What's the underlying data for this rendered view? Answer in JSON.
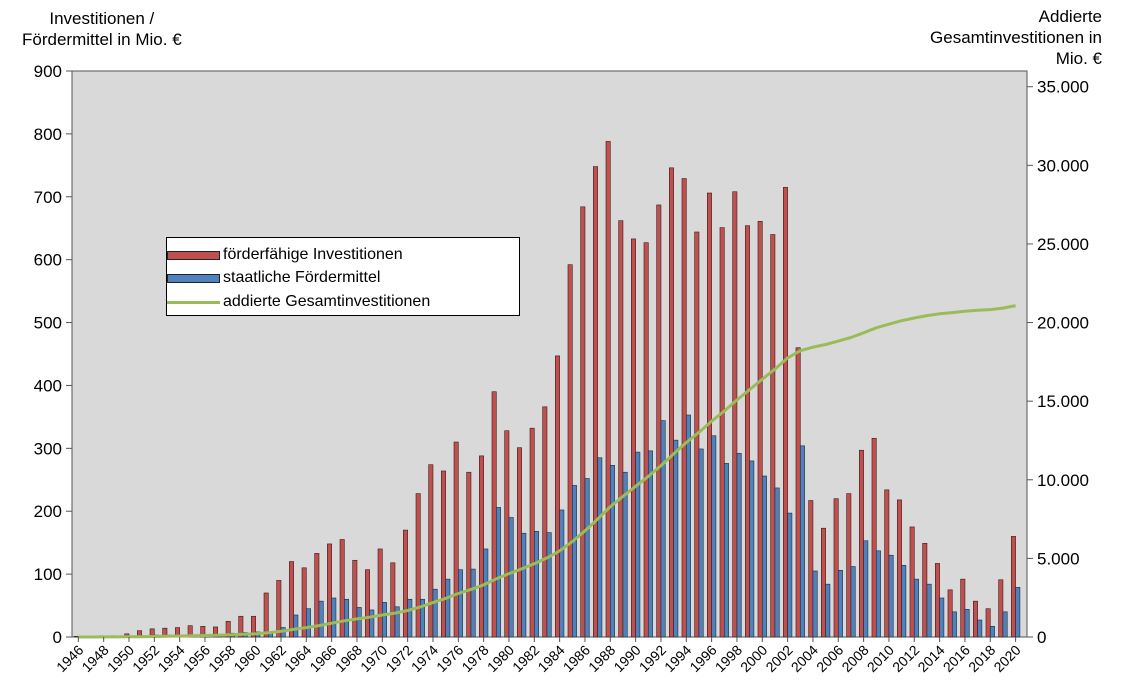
{
  "chart_data": {
    "type": "bar",
    "left_axis_title": [
      "Investitionen  /",
      "Fördermittel  in Mio. €"
    ],
    "right_axis_title": [
      "Addierte",
      "Gesamtinvestitionen  in",
      "Mio. €"
    ],
    "ylim_left": [
      0,
      900
    ],
    "yticks_left": [
      0,
      100,
      200,
      300,
      400,
      500,
      600,
      700,
      800,
      900
    ],
    "ylim_right": [
      0,
      36000
    ],
    "yticks_right": [
      "0",
      "5.000",
      "10.000",
      "15.000",
      "20.000",
      "25.000",
      "30.000",
      "35.000"
    ],
    "ytick_values_right": [
      0,
      5000,
      10000,
      15000,
      20000,
      25000,
      30000,
      35000
    ],
    "x_years": [
      1946,
      1947,
      1948,
      1949,
      1950,
      1951,
      1952,
      1953,
      1954,
      1955,
      1956,
      1957,
      1958,
      1959,
      1960,
      1961,
      1962,
      1963,
      1964,
      1965,
      1966,
      1967,
      1968,
      1969,
      1970,
      1971,
      1972,
      1973,
      1974,
      1975,
      1976,
      1977,
      1978,
      1979,
      1980,
      1981,
      1982,
      1983,
      1984,
      1985,
      1986,
      1987,
      1988,
      1989,
      1990,
      1991,
      1992,
      1993,
      1994,
      1995,
      1996,
      1997,
      1998,
      1999,
      2000,
      2001,
      2002,
      2003,
      2004,
      2005,
      2006,
      2007,
      2008,
      2009,
      2010,
      2011,
      2012,
      2013,
      2014,
      2015,
      2016,
      2017,
      2018,
      2019,
      2020
    ],
    "x_tick_labels": [
      "1946",
      "1948",
      "1950",
      "1952",
      "1954",
      "1956",
      "1958",
      "1960",
      "1962",
      "1964",
      "1966",
      "1968",
      "1970",
      "1972",
      "1974",
      "1976",
      "1978",
      "1980",
      "1982",
      "1984",
      "1986",
      "1988",
      "1990",
      "1992",
      "1994",
      "1996",
      "1998",
      "2000",
      "2002",
      "2004",
      "2006",
      "2008",
      "2010",
      "2012",
      "2014",
      "2016",
      "2018",
      "2020"
    ],
    "grid": false,
    "legend_position": "upper-left",
    "series": [
      {
        "name": "förderfähige Investitionen",
        "kind": "bar",
        "axis": "left",
        "color": "#c0504d",
        "values": [
          1,
          1,
          2,
          2,
          5,
          10,
          13,
          14,
          15,
          18,
          17,
          16,
          25,
          33,
          33,
          70,
          90,
          120,
          110,
          133,
          148,
          155,
          122,
          107,
          140,
          118,
          170,
          228,
          274,
          264,
          310,
          262,
          288,
          390,
          328,
          301,
          332,
          366,
          447,
          592,
          684,
          748,
          788,
          662,
          633,
          627,
          687,
          746,
          729,
          644,
          706,
          651,
          708,
          654,
          661,
          640,
          715,
          460,
          217,
          173,
          220,
          228,
          297,
          316,
          234,
          218,
          175,
          149,
          117,
          75,
          92,
          57,
          45,
          91,
          160
        ]
      },
      {
        "name": "staatliche Fördermittel",
        "kind": "bar",
        "axis": "left",
        "color": "#4f81bd",
        "values": [
          0,
          0,
          1,
          1,
          1,
          2,
          3,
          3,
          3,
          3,
          3,
          4,
          6,
          7,
          8,
          8,
          15,
          35,
          45,
          57,
          62,
          60,
          47,
          43,
          55,
          48,
          60,
          60,
          76,
          92,
          107,
          108,
          140,
          206,
          190,
          165,
          168,
          166,
          202,
          241,
          252,
          285,
          273,
          262,
          294,
          296,
          344,
          313,
          353,
          299,
          320,
          276,
          292,
          280,
          256,
          237,
          197,
          304,
          105,
          84,
          106,
          112,
          153,
          137,
          130,
          114,
          92,
          84,
          62,
          40,
          44,
          27,
          17,
          40,
          79
        ]
      },
      {
        "name": "addierte Gesamtinvestitionen",
        "kind": "line",
        "axis": "right",
        "color": "#9bbb59",
        "values": [
          1,
          2,
          4,
          6,
          11,
          21,
          34,
          48,
          63,
          81,
          98,
          114,
          139,
          172,
          205,
          275,
          365,
          485,
          595,
          728,
          876,
          1031,
          1153,
          1260,
          1400,
          1518,
          1688,
          1916,
          2190,
          2454,
          2764,
          3026,
          3314,
          3704,
          4032,
          4333,
          4665,
          5031,
          5478,
          6070,
          6754,
          7502,
          8290,
          8952,
          9585,
          10212,
          10899,
          11645,
          12374,
          13018,
          13724,
          14375,
          15083,
          15737,
          16398,
          17038,
          17753,
          18213,
          18430,
          18603,
          18823,
          19051,
          19348,
          19664,
          19898,
          20116,
          20291,
          20440,
          20557,
          20632,
          20724,
          20781,
          20826,
          20917,
          21077
        ]
      }
    ]
  }
}
